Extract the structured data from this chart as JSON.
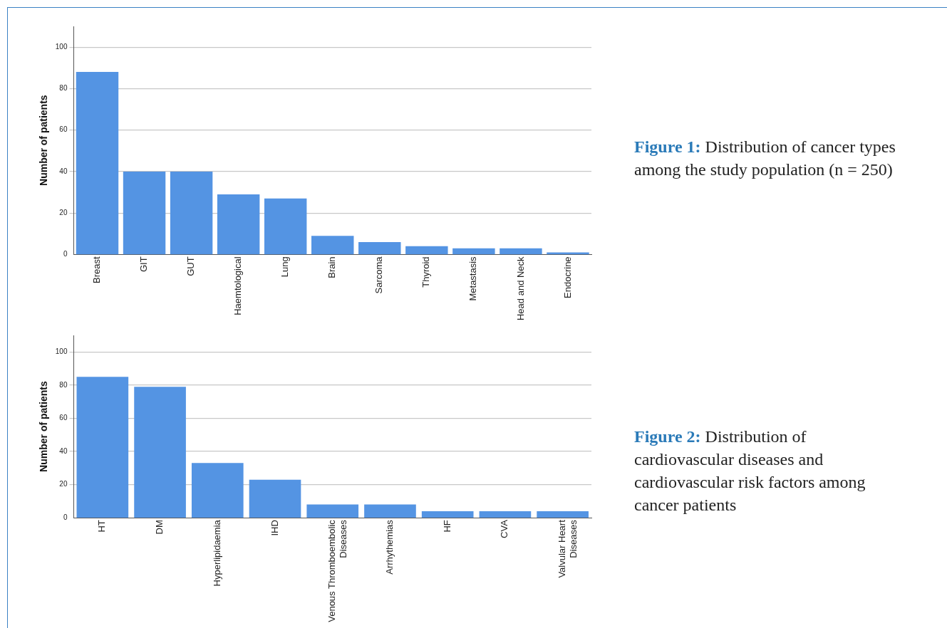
{
  "chart_data": [
    {
      "type": "bar",
      "annotations": [
        "Figure 1: Distribution of cancer types among the study population (n = 250)"
      ],
      "ylabel": "Number of patients",
      "categories": [
        "Breast",
        "GIT",
        "GUT",
        "Haemtological",
        "Lung",
        "Brain",
        "Sarcoma",
        "Thyroid",
        "Metastasis",
        "Head and Neck",
        "Endocrine"
      ],
      "values": [
        88,
        40,
        40,
        29,
        27,
        9,
        6,
        4,
        3,
        3,
        1
      ],
      "color": "#5494e3",
      "ylim": [
        0,
        110
      ],
      "yticks": [
        0,
        20,
        40,
        60,
        80,
        100
      ],
      "grid": "y",
      "legend": false
    },
    {
      "type": "bar",
      "annotations": [
        "Figure 2: Distribution of cardiovascular diseases and cardiovascular risk factors among cancer patients"
      ],
      "ylabel": "Number of patients",
      "categories": [
        "HT",
        "DM",
        "Hyperlipidaemia",
        "IHD",
        "Venous Thromboembolic Diseases",
        "Arrhythemias",
        "HF",
        "CVA",
        "Valvular Heart Diseases"
      ],
      "values": [
        85,
        79,
        33,
        23,
        8,
        8,
        4,
        4,
        4
      ],
      "color": "#5494e3",
      "ylim": [
        0,
        110
      ],
      "yticks": [
        0,
        20,
        40,
        60,
        80,
        100
      ],
      "grid": "y",
      "legend": false
    }
  ]
}
